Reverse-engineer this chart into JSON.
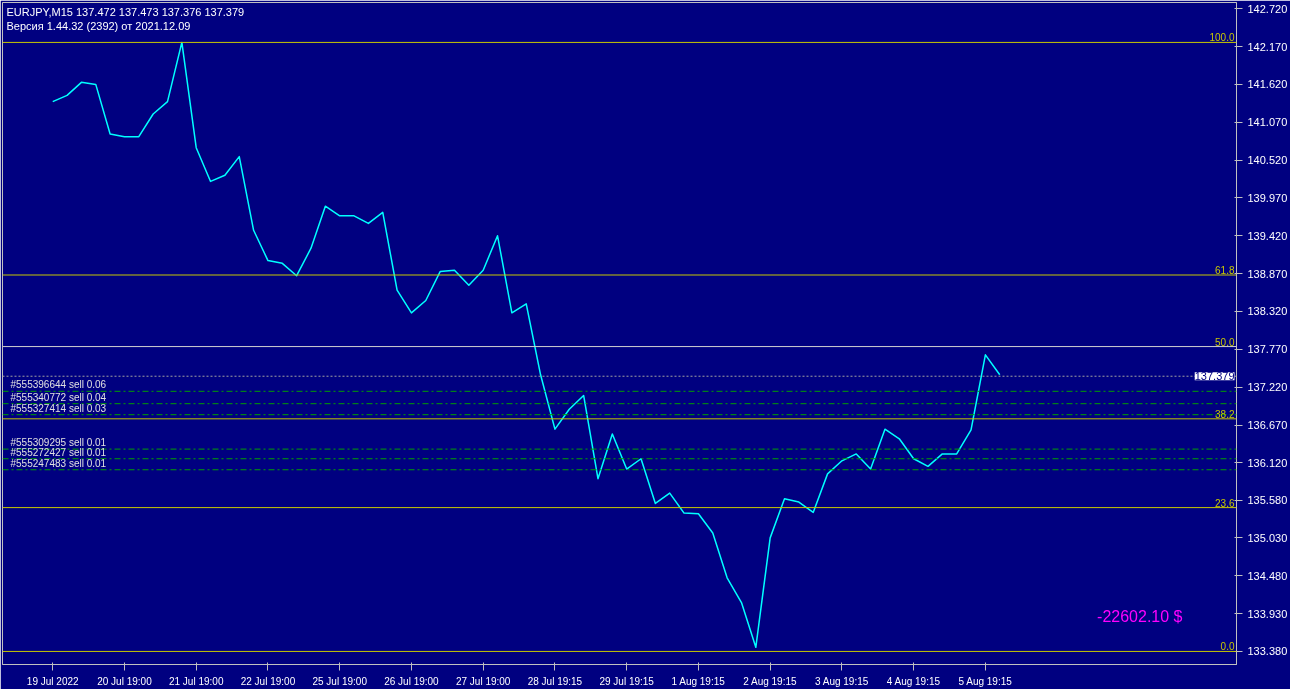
{
  "chart_data": {
    "type": "line",
    "title": "EURJPY,M15  137.472 137.473 137.376 137.379",
    "subtitle": "Версия 1.44.32 (2392) от 2021.12.09",
    "categories": [
      "19 Jul 2022",
      null,
      null,
      null,
      null,
      "20 Jul 19:00",
      null,
      null,
      null,
      null,
      "21 Jul 19:00",
      null,
      null,
      null,
      null,
      "22 Jul 19:00",
      null,
      null,
      null,
      null,
      "25 Jul 19:00",
      null,
      null,
      null,
      null,
      "26 Jul 19:00",
      null,
      null,
      null,
      null,
      "27 Jul 19:00",
      null,
      null,
      null,
      null,
      "28 Jul 19:15",
      null,
      null,
      null,
      null,
      "29 Jul 19:15",
      null,
      null,
      null,
      null,
      "1 Aug 19:15",
      null,
      null,
      null,
      null,
      "2 Aug 19:15",
      null,
      null,
      null,
      null,
      "3 Aug 19:15",
      null,
      null,
      null,
      null,
      "4 Aug 19:15",
      null,
      null,
      null,
      null,
      "5 Aug 19:15",
      null,
      null,
      null,
      null,
      null,
      null,
      null,
      null,
      null,
      null,
      null,
      null,
      null,
      null,
      null,
      null,
      null
    ],
    "series": [
      {
        "color": "#00ffff",
        "values": [
          141.37,
          141.46,
          141.65,
          141.62,
          140.9,
          140.86,
          140.86,
          141.19,
          141.37,
          142.23,
          140.7,
          140.21,
          140.3,
          140.57,
          139.5,
          139.06,
          139.02,
          138.84,
          139.24,
          139.85,
          139.71,
          139.71,
          139.6,
          139.76,
          138.63,
          138.3,
          138.48,
          138.9,
          138.92,
          138.7,
          138.92,
          139.42,
          138.3,
          138.43,
          137.4,
          136.61,
          136.9,
          137.1,
          135.89,
          136.54,
          136.03,
          136.18,
          135.53,
          135.68,
          135.39,
          135.38,
          135.1,
          134.45,
          134.09,
          133.44,
          135.03,
          135.6,
          135.55,
          135.4,
          135.96,
          136.15,
          136.25,
          136.03,
          136.61,
          136.47,
          136.18,
          136.07,
          136.25,
          136.25,
          136.6,
          137.69,
          137.4,
          null,
          null,
          null,
          null,
          null,
          null,
          null,
          null,
          null,
          null,
          null,
          null,
          null,
          null,
          null,
          null
        ]
      }
    ],
    "ylim": [
      133.19,
      142.81
    ],
    "yticks": [
      {
        "value": 133.38,
        "label": "133.380"
      },
      {
        "value": 133.93,
        "label": "133.930"
      },
      {
        "value": 134.48,
        "label": "134.480"
      },
      {
        "value": 135.03,
        "label": "135.030"
      },
      {
        "value": 135.58,
        "label": "135.580"
      },
      {
        "value": 136.12,
        "label": "136.120"
      },
      {
        "value": 136.67,
        "label": "136.670"
      },
      {
        "value": 137.22,
        "label": "137.220"
      },
      {
        "value": 137.77,
        "label": "137.770"
      },
      {
        "value": 138.32,
        "label": "138.320"
      },
      {
        "value": 138.87,
        "label": "138.870"
      },
      {
        "value": 139.42,
        "label": "139.420"
      },
      {
        "value": 139.97,
        "label": "139.970"
      },
      {
        "value": 140.52,
        "label": "140.520"
      },
      {
        "value": 141.07,
        "label": "141.070"
      },
      {
        "value": 141.62,
        "label": "141.620"
      },
      {
        "value": 142.17,
        "label": "142.170"
      },
      {
        "value": 142.72,
        "label": "142.720"
      }
    ],
    "grid": false,
    "ref_lines": [
      {
        "axis": "y",
        "value": 142.23,
        "color": "#c8c800",
        "line_style": "solid"
      },
      {
        "axis": "y",
        "value": 138.85,
        "color": "#c8c800",
        "line_style": "solid"
      },
      {
        "axis": "y",
        "value": 137.81,
        "color": "#d0d0d0",
        "line_style": "solid"
      },
      {
        "axis": "y",
        "value": 136.76,
        "color": "#c8c800",
        "line_style": "solid"
      },
      {
        "axis": "y",
        "value": 135.47,
        "color": "#c8c800",
        "line_style": "solid"
      },
      {
        "axis": "y",
        "value": 133.38,
        "color": "#c8c800",
        "line_style": "solid"
      },
      {
        "axis": "y",
        "value": 137.16,
        "label": "#555396644 sell 0.06",
        "color": "#00a000",
        "line_style": "dashed"
      },
      {
        "axis": "y",
        "value": 136.98,
        "label": "#555340772 sell 0.04",
        "color": "#00a000",
        "line_style": "dashed"
      },
      {
        "axis": "y",
        "value": 136.82,
        "label": "#555327414 sell 0.03",
        "color": "#00a000",
        "line_style": "dashed"
      },
      {
        "axis": "y",
        "value": 136.32,
        "label": "#555309295 sell 0.01",
        "color": "#00a000",
        "line_style": "dashed"
      },
      {
        "axis": "y",
        "value": 136.18,
        "label": "#555272427 sell 0.01",
        "color": "#00a000",
        "line_style": "dashed"
      },
      {
        "axis": "y",
        "value": 136.02,
        "label": "#555247483 sell 0.01",
        "color": "#00a000",
        "line_style": "dashed"
      },
      {
        "axis": "y",
        "value": 137.379,
        "label": "137.379",
        "color": "#a0a0a0",
        "line_style": "dotted"
      }
    ],
    "annotations": [
      "-22602.10 $",
      {
        "text": "100.0",
        "y": 142.23
      },
      {
        "text": "61.8",
        "y": 138.85
      },
      {
        "text": "50.0",
        "y": 137.81
      },
      {
        "text": "38.2",
        "y": 136.76
      },
      {
        "text": "23.6",
        "y": 135.47
      },
      {
        "text": "0.0",
        "y": 133.38
      }
    ]
  }
}
